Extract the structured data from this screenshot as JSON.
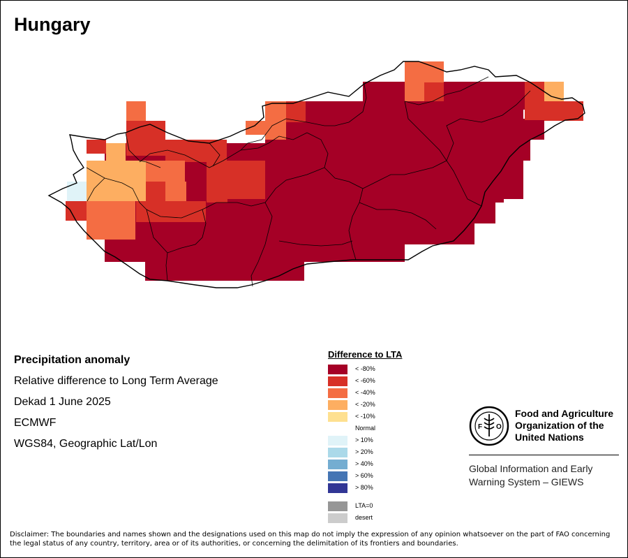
{
  "map": {
    "title": "Hungary"
  },
  "info": {
    "heading": "Precipitation anomaly",
    "lines": [
      "Relative difference to Long Term Average",
      "Dekad 1 June 2025",
      "ECMWF",
      "WGS84, Geographic Lat/Lon"
    ]
  },
  "legend": {
    "title": "Difference to LTA",
    "classes": [
      {
        "label": "< -80%",
        "color": "#a50026"
      },
      {
        "label": "< -60%",
        "color": "#d73027"
      },
      {
        "label": "< -40%",
        "color": "#f46d43"
      },
      {
        "label": "< -20%",
        "color": "#fdae61"
      },
      {
        "label": "< -10%",
        "color": "#fee090"
      },
      {
        "label": "Normal",
        "color": "#ffffff"
      },
      {
        "label": "> 10%",
        "color": "#e0f3f8"
      },
      {
        "label": "> 20%",
        "color": "#abd9e9"
      },
      {
        "label": "> 40%",
        "color": "#74add1"
      },
      {
        "label": "> 60%",
        "color": "#4575b4"
      },
      {
        "label": "> 80%",
        "color": "#313695"
      },
      {
        "label": "LTA=0",
        "color": "#969696"
      },
      {
        "label": "desert",
        "color": "#cccccc"
      }
    ]
  },
  "organization": {
    "name_lines": [
      "Food and Agriculture",
      "Organization of the",
      "United Nations"
    ],
    "logo_text": "FAO",
    "logo_motto": "FIAT PANIS",
    "system_lines": [
      "Global Information and Early",
      "Warning System – GIEWS"
    ]
  },
  "disclaimer": "Disclaimer: The boundaries and names shown and the designations used on this map do not imply the expression of any opinion whatsoever on the part of FAO concerning the legal status of any country, territory, area or of its authorities, or concerning the delimitation of its frontiers and boundaries."
}
